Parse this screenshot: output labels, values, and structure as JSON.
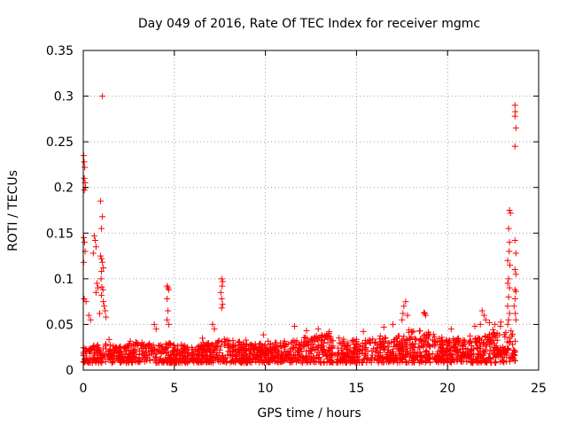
{
  "chart_data": {
    "type": "scatter",
    "title": "Day 049 of 2016, Rate Of TEC Index for receiver mgmc",
    "xlabel": "GPS time / hours",
    "ylabel": "ROTI / TECUs",
    "xlim": [
      0,
      25
    ],
    "ylim": [
      0,
      0.35
    ],
    "x_ticks": [
      "0",
      "5",
      "10",
      "15",
      "20",
      "25"
    ],
    "y_ticks": [
      "0",
      "0.05",
      "0.1",
      "0.15",
      "0.2",
      "0.25",
      "0.3",
      "0.35"
    ],
    "grid": true,
    "marker": "+",
    "color": "#ff0000",
    "baseline": {
      "x_range": [
        0,
        23.75
      ],
      "typical_y": [
        0.008,
        0.035
      ],
      "envelope": [
        [
          0.0,
          0.025
        ],
        [
          1.0,
          0.03
        ],
        [
          2.0,
          0.025
        ],
        [
          3.0,
          0.032
        ],
        [
          4.0,
          0.028
        ],
        [
          5.0,
          0.03
        ],
        [
          6.0,
          0.025
        ],
        [
          7.5,
          0.035
        ],
        [
          9.0,
          0.03
        ],
        [
          10.5,
          0.03
        ],
        [
          12.0,
          0.035
        ],
        [
          13.0,
          0.04
        ],
        [
          14.5,
          0.035
        ],
        [
          16.0,
          0.035
        ],
        [
          17.5,
          0.04
        ],
        [
          18.5,
          0.045
        ],
        [
          20.0,
          0.035
        ],
        [
          21.5,
          0.035
        ],
        [
          22.5,
          0.045
        ],
        [
          23.75,
          0.04
        ]
      ]
    },
    "highlight_points": [
      [
        0.02,
        0.235
      ],
      [
        0.05,
        0.228
      ],
      [
        0.08,
        0.222
      ],
      [
        0.05,
        0.21
      ],
      [
        0.1,
        0.205
      ],
      [
        0.12,
        0.2
      ],
      [
        0.06,
        0.197
      ],
      [
        0.03,
        0.145
      ],
      [
        0.07,
        0.14
      ],
      [
        0.1,
        0.13
      ],
      [
        0.02,
        0.118
      ],
      [
        0.05,
        0.078
      ],
      [
        0.15,
        0.075
      ],
      [
        0.6,
        0.147
      ],
      [
        0.65,
        0.142
      ],
      [
        0.7,
        0.135
      ],
      [
        0.55,
        0.128
      ],
      [
        0.75,
        0.095
      ],
      [
        0.8,
        0.09
      ],
      [
        0.7,
        0.085
      ],
      [
        0.95,
        0.185
      ],
      [
        1.05,
        0.168
      ],
      [
        1.0,
        0.155
      ],
      [
        0.95,
        0.125
      ],
      [
        1.0,
        0.122
      ],
      [
        1.05,
        0.118
      ],
      [
        1.1,
        0.112
      ],
      [
        1.0,
        0.108
      ],
      [
        0.98,
        0.1
      ],
      [
        1.02,
        0.091
      ],
      [
        1.08,
        0.088
      ],
      [
        1.0,
        0.082
      ],
      [
        1.1,
        0.075
      ],
      [
        1.15,
        0.07
      ],
      [
        1.2,
        0.065
      ],
      [
        1.25,
        0.058
      ],
      [
        1.05,
        0.3
      ],
      [
        0.9,
        0.062
      ],
      [
        0.4,
        0.055
      ],
      [
        0.3,
        0.06
      ],
      [
        4.6,
        0.092
      ],
      [
        4.65,
        0.09
      ],
      [
        4.7,
        0.088
      ],
      [
        4.6,
        0.078
      ],
      [
        4.65,
        0.065
      ],
      [
        4.6,
        0.055
      ],
      [
        4.7,
        0.05
      ],
      [
        3.9,
        0.05
      ],
      [
        4.0,
        0.045
      ],
      [
        7.6,
        0.1
      ],
      [
        7.65,
        0.097
      ],
      [
        7.62,
        0.092
      ],
      [
        7.55,
        0.085
      ],
      [
        7.6,
        0.078
      ],
      [
        7.65,
        0.072
      ],
      [
        7.6,
        0.068
      ],
      [
        7.1,
        0.05
      ],
      [
        7.2,
        0.045
      ],
      [
        11.6,
        0.048
      ],
      [
        12.9,
        0.045
      ],
      [
        13.5,
        0.042
      ],
      [
        17.7,
        0.075
      ],
      [
        17.6,
        0.07
      ],
      [
        17.55,
        0.062
      ],
      [
        17.5,
        0.055
      ],
      [
        17.8,
        0.06
      ],
      [
        18.7,
        0.063
      ],
      [
        18.75,
        0.062
      ],
      [
        18.8,
        0.06
      ],
      [
        17.0,
        0.05
      ],
      [
        16.5,
        0.047
      ],
      [
        20.2,
        0.045
      ],
      [
        21.5,
        0.048
      ],
      [
        21.9,
        0.065
      ],
      [
        22.0,
        0.06
      ],
      [
        22.1,
        0.055
      ],
      [
        21.8,
        0.05
      ],
      [
        22.3,
        0.052
      ],
      [
        22.6,
        0.05
      ],
      [
        22.9,
        0.048
      ],
      [
        23.4,
        0.175
      ],
      [
        23.45,
        0.172
      ],
      [
        23.35,
        0.155
      ],
      [
        23.4,
        0.14
      ],
      [
        23.38,
        0.13
      ],
      [
        23.3,
        0.12
      ],
      [
        23.42,
        0.115
      ],
      [
        23.35,
        0.1
      ],
      [
        23.3,
        0.095
      ],
      [
        23.4,
        0.09
      ],
      [
        23.35,
        0.08
      ],
      [
        23.3,
        0.07
      ],
      [
        23.4,
        0.062
      ],
      [
        23.35,
        0.055
      ],
      [
        23.3,
        0.05
      ],
      [
        23.7,
        0.29
      ],
      [
        23.72,
        0.283
      ],
      [
        23.7,
        0.278
      ],
      [
        23.75,
        0.265
      ],
      [
        23.7,
        0.245
      ],
      [
        23.7,
        0.142
      ],
      [
        23.75,
        0.128
      ],
      [
        23.7,
        0.11
      ],
      [
        23.75,
        0.105
      ],
      [
        23.7,
        0.088
      ],
      [
        23.75,
        0.086
      ],
      [
        23.7,
        0.078
      ],
      [
        23.65,
        0.07
      ],
      [
        23.72,
        0.062
      ],
      [
        23.75,
        0.055
      ]
    ]
  }
}
